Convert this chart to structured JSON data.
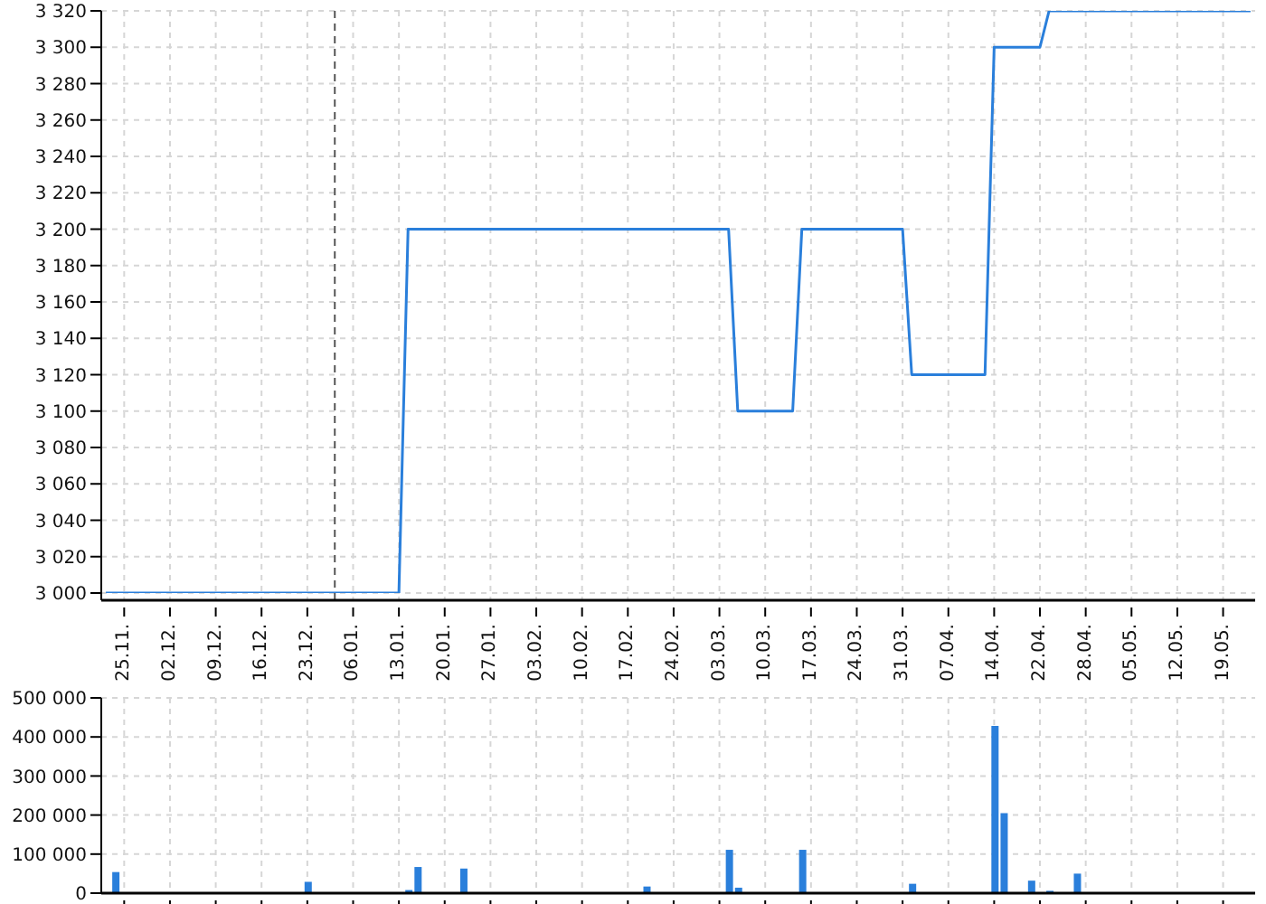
{
  "chart_data": [
    {
      "type": "line",
      "color": "#2a7fdb",
      "grid": true,
      "categories": [
        null,
        null,
        "25.11.",
        null,
        null,
        null,
        null,
        "02.12.",
        null,
        null,
        null,
        null,
        "09.12.",
        null,
        null,
        null,
        null,
        "16.12.",
        null,
        null,
        null,
        null,
        "23.12.",
        null,
        null,
        null,
        null,
        "06.01.",
        null,
        null,
        null,
        null,
        "13.01.",
        null,
        null,
        null,
        null,
        "20.01.",
        null,
        null,
        null,
        null,
        "27.01.",
        null,
        null,
        null,
        null,
        "03.02.",
        null,
        null,
        null,
        null,
        "10.02.",
        null,
        null,
        null,
        null,
        "17.02.",
        null,
        null,
        null,
        null,
        "24.02.",
        null,
        null,
        null,
        null,
        "03.03.",
        null,
        null,
        null,
        null,
        "10.03.",
        null,
        null,
        null,
        null,
        "17.03.",
        null,
        null,
        null,
        null,
        "24.03.",
        null,
        null,
        null,
        null,
        "31.03.",
        null,
        null,
        null,
        null,
        "07.04.",
        null,
        null,
        null,
        null,
        "14.04.",
        null,
        null,
        null,
        null,
        "22.04.",
        null,
        null,
        null,
        null,
        "28.04.",
        null,
        null,
        null,
        null,
        "05.05.",
        null,
        null,
        null,
        null,
        "12.05.",
        null,
        null,
        null,
        null,
        "19.05.",
        null,
        null,
        null
      ],
      "values": [
        3000,
        3000,
        3000,
        3000,
        3000,
        3000,
        3000,
        3000,
        3000,
        3000,
        3000,
        3000,
        3000,
        3000,
        3000,
        3000,
        3000,
        3000,
        3000,
        3000,
        3000,
        3000,
        3000,
        3000,
        3000,
        3000,
        3000,
        3000,
        3000,
        3000,
        3000,
        3000,
        3000,
        3200,
        3200,
        3200,
        3200,
        3200,
        3200,
        3200,
        3200,
        3200,
        3200,
        3200,
        3200,
        3200,
        3200,
        3200,
        3200,
        3200,
        3200,
        3200,
        3200,
        3200,
        3200,
        3200,
        3200,
        3200,
        3200,
        3200,
        3200,
        3200,
        3200,
        3200,
        3200,
        3200,
        3200,
        3200,
        3200,
        3100,
        3100,
        3100,
        3100,
        3100,
        3100,
        3100,
        3200,
        3200,
        3200,
        3200,
        3200,
        3200,
        3200,
        3200,
        3200,
        3200,
        3200,
        3200,
        3120,
        3120,
        3120,
        3120,
        3120,
        3120,
        3120,
        3120,
        3120,
        3300,
        3300,
        3300,
        3300,
        3300,
        3300,
        3320,
        3320,
        3320,
        3320,
        3320,
        3320,
        3320,
        3320,
        3320,
        3320,
        3320,
        3320,
        3320,
        3320,
        3320,
        3320,
        3320,
        3320,
        3320,
        3320,
        3320,
        3320,
        3320
      ],
      "ylim": [
        3000,
        3320
      ],
      "yticks": [
        {
          "value": 3000,
          "label": "3 000"
        },
        {
          "value": 3020,
          "label": "3 020"
        },
        {
          "value": 3040,
          "label": "3 040"
        },
        {
          "value": 3060,
          "label": "3 060"
        },
        {
          "value": 3080,
          "label": "3 080"
        },
        {
          "value": 3100,
          "label": "3 100"
        },
        {
          "value": 3120,
          "label": "3 120"
        },
        {
          "value": 3140,
          "label": "3 140"
        },
        {
          "value": 3160,
          "label": "3 160"
        },
        {
          "value": 3180,
          "label": "3 180"
        },
        {
          "value": 3200,
          "label": "3 200"
        },
        {
          "value": 3220,
          "label": "3 220"
        },
        {
          "value": 3240,
          "label": "3 240"
        },
        {
          "value": 3260,
          "label": "3 260"
        },
        {
          "value": 3280,
          "label": "3 280"
        },
        {
          "value": 3300,
          "label": "3 300"
        },
        {
          "value": 3320,
          "label": "3 320"
        }
      ],
      "tick_labels": true
    },
    {
      "type": "bar",
      "color": "#2a7fdb",
      "grid": true,
      "tick_labels": "y",
      "categories": [
        null,
        null,
        "25.11.",
        null,
        null,
        null,
        null,
        "02.12.",
        null,
        null,
        null,
        null,
        "09.12.",
        null,
        null,
        null,
        null,
        "16.12.",
        null,
        null,
        null,
        null,
        "23.12.",
        null,
        null,
        null,
        null,
        "06.01.",
        null,
        null,
        null,
        null,
        "13.01.",
        null,
        null,
        null,
        null,
        "20.01.",
        null,
        null,
        null,
        null,
        "27.01.",
        null,
        null,
        null,
        null,
        "03.02.",
        null,
        null,
        null,
        null,
        "10.02.",
        null,
        null,
        null,
        null,
        "17.02.",
        null,
        null,
        null,
        null,
        "24.02.",
        null,
        null,
        null,
        null,
        "03.03.",
        null,
        null,
        null,
        null,
        "10.03.",
        null,
        null,
        null,
        null,
        "17.03.",
        null,
        null,
        null,
        null,
        "24.03.",
        null,
        null,
        null,
        null,
        "31.03.",
        null,
        null,
        null,
        null,
        "07.04.",
        null,
        null,
        null,
        null,
        "14.04.",
        null,
        null,
        null,
        null,
        "22.04.",
        null,
        null,
        null,
        null,
        "28.04.",
        null,
        null,
        null,
        null,
        "05.05.",
        null,
        null,
        null,
        null,
        "12.05.",
        null,
        null,
        null,
        null,
        "19.05.",
        null,
        null,
        null
      ],
      "values": [
        null,
        54000,
        null,
        null,
        null,
        null,
        null,
        null,
        null,
        null,
        null,
        null,
        null,
        null,
        null,
        null,
        null,
        null,
        null,
        null,
        null,
        null,
        29000,
        null,
        null,
        null,
        null,
        null,
        null,
        null,
        null,
        null,
        null,
        8000,
        67000,
        null,
        null,
        null,
        null,
        63000,
        null,
        null,
        null,
        null,
        null,
        null,
        null,
        null,
        null,
        null,
        null,
        null,
        null,
        null,
        null,
        null,
        null,
        null,
        2000,
        17000,
        null,
        null,
        null,
        null,
        2000,
        null,
        null,
        null,
        111000,
        14000,
        null,
        null,
        null,
        null,
        null,
        null,
        111000,
        null,
        null,
        null,
        null,
        null,
        null,
        null,
        null,
        null,
        null,
        null,
        24000,
        null,
        null,
        null,
        null,
        null,
        null,
        null,
        null,
        428000,
        205000,
        null,
        null,
        32000,
        null,
        6000,
        null,
        null,
        50000,
        null,
        null,
        null,
        null,
        null,
        null,
        null,
        null,
        null,
        null,
        null,
        null,
        null,
        null,
        null,
        2000,
        null,
        null,
        null
      ],
      "ylim": [
        0,
        500000
      ],
      "yticks": [
        {
          "value": 0,
          "label": "0"
        },
        {
          "value": 100000,
          "label": "100 000"
        },
        {
          "value": 200000,
          "label": "200 000"
        },
        {
          "value": 300000,
          "label": "300 000"
        },
        {
          "value": 400000,
          "label": "400 000"
        },
        {
          "value": 500000,
          "label": "500 000"
        }
      ]
    }
  ]
}
